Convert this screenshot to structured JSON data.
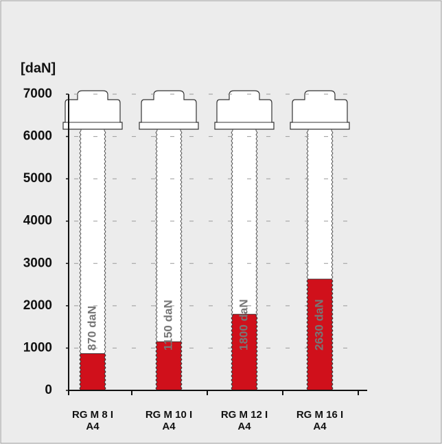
{
  "chart_data": {
    "type": "bar",
    "y_label": "[daN]",
    "categories": [
      [
        "RG M 8 I",
        "A4"
      ],
      [
        "RG M 10 I",
        "A4"
      ],
      [
        "RG M 12 I",
        "A4"
      ],
      [
        "RG M 16 I",
        "A4"
      ]
    ],
    "values": [
      870,
      1150,
      1800,
      2630
    ],
    "value_labels": [
      "870 daN",
      "1150 daN",
      "1800 daN",
      "2630 daN"
    ],
    "color": "#d0101b",
    "ylim": [
      0,
      7000
    ],
    "yticks": [
      0,
      1000,
      2000,
      3000,
      4000,
      5000,
      6000,
      7000
    ],
    "grid": true
  }
}
